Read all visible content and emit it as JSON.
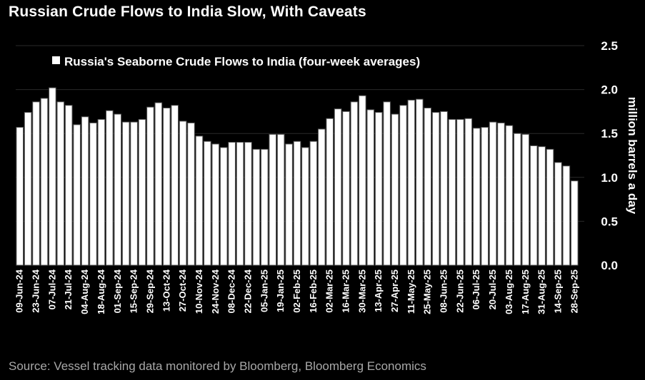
{
  "chart_data": {
    "type": "bar",
    "title": "Russian Crude Flows to India Slow, With Caveats",
    "legend": [
      "Russia's Seaborne Crude Flows to India (four-week averages)"
    ],
    "legend_placement": "top",
    "ylabel": "million barrels a day",
    "xlabel": "",
    "ylim": [
      0,
      2.5
    ],
    "yticks": [
      "0.0",
      "0.5",
      "1.0",
      "1.5",
      "2.0",
      "2.5"
    ],
    "tick_labels": [
      "09-Jun-24",
      "23-Jun-24",
      "07-Jul-24",
      "21-Jul-24",
      "04-Aug-24",
      "18-Aug-24",
      "01-Sep-24",
      "15-Sep-24",
      "29-Sep-24",
      "13-Oct-24",
      "27-Oct-24",
      "10-Nov-24",
      "24-Nov-24",
      "08-Dec-24",
      "22-Dec-24",
      "05-Jan-25",
      "19-Jan-25",
      "02-Feb-25",
      "16-Feb-25",
      "02-Mar-25",
      "16-Mar-25",
      "30-Mar-25",
      "13-Apr-25",
      "27-Apr-25",
      "11-May-25",
      "25-May-25",
      "08-Jun-25",
      "22-Jun-25",
      "06-Jul-25",
      "20-Jul-25",
      "03-Aug-25",
      "17-Aug-25",
      "31-Aug-25",
      "14-Sep-25",
      "28-Sep-25"
    ],
    "tick_every": 2,
    "values": [
      1.57,
      1.74,
      1.86,
      1.9,
      2.02,
      1.86,
      1.82,
      1.6,
      1.69,
      1.62,
      1.66,
      1.76,
      1.72,
      1.63,
      1.63,
      1.66,
      1.8,
      1.85,
      1.79,
      1.82,
      1.64,
      1.62,
      1.47,
      1.41,
      1.38,
      1.34,
      1.4,
      1.4,
      1.4,
      1.32,
      1.32,
      1.49,
      1.49,
      1.38,
      1.41,
      1.34,
      1.41,
      1.55,
      1.67,
      1.78,
      1.75,
      1.86,
      1.93,
      1.77,
      1.74,
      1.86,
      1.72,
      1.82,
      1.88,
      1.89,
      1.79,
      1.74,
      1.75,
      1.66,
      1.66,
      1.67,
      1.56,
      1.57,
      1.63,
      1.62,
      1.59,
      1.5,
      1.49,
      1.36,
      1.35,
      1.32,
      1.17,
      1.13,
      0.96
    ],
    "bar_color": "#ffffff",
    "source": "Source: Vessel tracking data monitored by Bloomberg, Bloomberg Economics"
  }
}
